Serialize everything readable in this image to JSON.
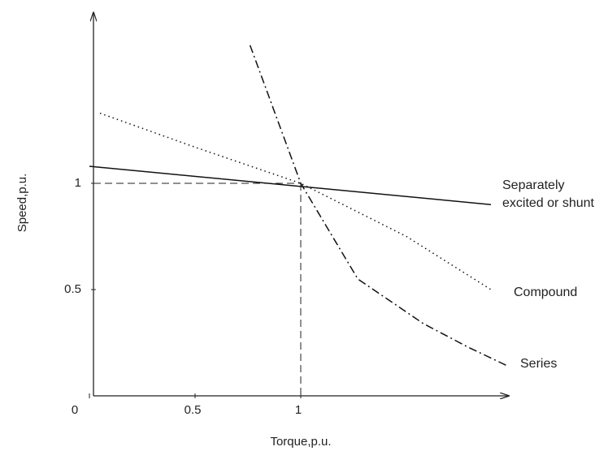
{
  "chart_data": {
    "type": "line",
    "x_label": "Torque,p.u.",
    "y_label": "Speed,p.u.",
    "xlim": [
      0,
      1.98
    ],
    "ylim": [
      0,
      1.8
    ],
    "xticks": [
      0,
      0.5,
      1
    ],
    "yticks": [
      0.5,
      1
    ],
    "series": [
      {
        "name": "Separately excited or shunt",
        "color": "#111111",
        "style": "solid",
        "x": [
          0,
          1.9
        ],
        "values": [
          1.08,
          0.9
        ]
      },
      {
        "name": "Compound",
        "color": "#111111",
        "style": "dotted",
        "x": [
          0.05,
          0.5,
          1,
          1.5,
          1.9
        ],
        "values": [
          1.33,
          1.17,
          1,
          0.75,
          0.5
        ]
      },
      {
        "name": "Series",
        "color": "#111111",
        "style": "dashdot",
        "x": [
          0.76,
          1,
          1.27,
          1.58,
          1.79,
          1.98
        ],
        "values": [
          1.65,
          1,
          0.55,
          0.34,
          0.23,
          0.14
        ]
      }
    ]
  }
}
